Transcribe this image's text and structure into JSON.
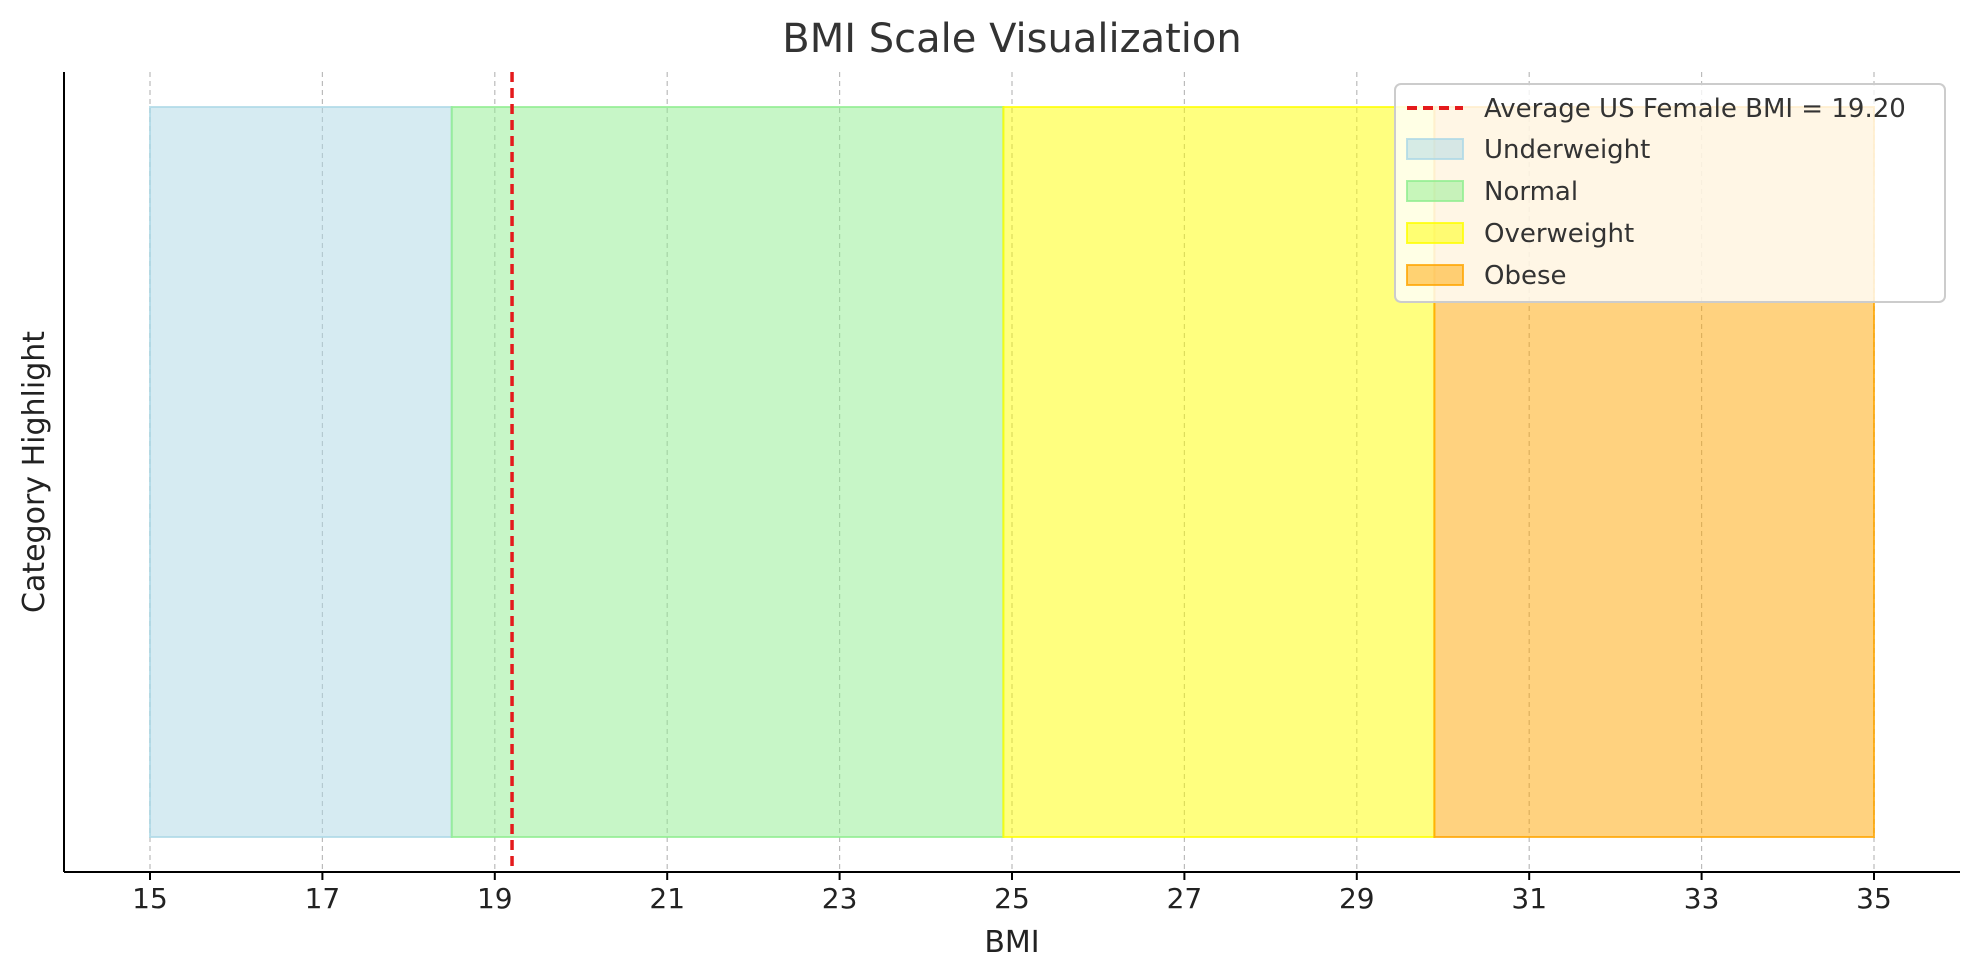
{
  "chart_data": {
    "type": "bar",
    "title": "BMI Scale Visualization",
    "xlabel": "BMI",
    "ylabel": "Category Highlight",
    "xlim": [
      14,
      36
    ],
    "x_ticks": [
      15,
      17,
      19,
      21,
      23,
      25,
      27,
      29,
      31,
      33,
      35
    ],
    "grid": "x-dashed",
    "legend_position": "top-right",
    "categories": [
      {
        "name": "Underweight",
        "start": 15,
        "end": 18.5,
        "color": "#add8e6"
      },
      {
        "name": "Normal",
        "start": 18.5,
        "end": 24.9,
        "color": "#90ee90"
      },
      {
        "name": "Overweight",
        "start": 24.9,
        "end": 29.9,
        "color": "#ffff00"
      },
      {
        "name": "Obese",
        "start": 29.9,
        "end": 35,
        "color": "#ffa500"
      }
    ],
    "reference_line": {
      "label": "Average US Female BMI = 19.20",
      "value": 19.2,
      "color": "#e41a1c",
      "style": "dashed"
    }
  }
}
